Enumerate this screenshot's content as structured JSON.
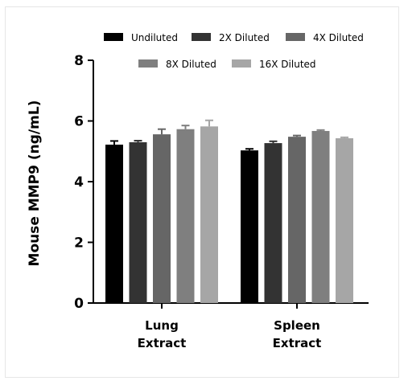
{
  "chart_data": {
    "type": "bar",
    "ylabel": "Mouse MMP9 (ng/mL)",
    "xlabel": "",
    "ylim": [
      0,
      8
    ],
    "yticks": [
      0,
      2,
      4,
      6,
      8
    ],
    "categories": [
      {
        "lines": [
          "Lung",
          "Extract"
        ]
      },
      {
        "lines": [
          "Spleen",
          "Extract"
        ]
      }
    ],
    "series": [
      {
        "name": "Undiluted",
        "color": "#000000",
        "values": [
          5.22,
          5.03
        ],
        "errors": [
          0.12,
          0.05
        ]
      },
      {
        "name": "2X Diluted",
        "color": "#333333",
        "values": [
          5.3,
          5.27
        ],
        "errors": [
          0.05,
          0.06
        ]
      },
      {
        "name": "4X Diluted",
        "color": "#666666",
        "values": [
          5.56,
          5.48
        ],
        "errors": [
          0.17,
          0.04
        ]
      },
      {
        "name": "8X Diluted",
        "color": "#7f7f7f",
        "values": [
          5.73,
          5.67
        ],
        "errors": [
          0.12,
          0.03
        ]
      },
      {
        "name": "16X Diluted",
        "color": "#a6a6a6",
        "values": [
          5.82,
          5.43
        ],
        "errors": [
          0.2,
          0.03
        ]
      }
    ],
    "legend_position": "top",
    "grid": false
  }
}
